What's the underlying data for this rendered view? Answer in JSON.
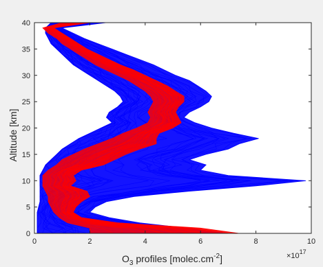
{
  "chart_data": {
    "type": "line",
    "xlabel_main": "O",
    "xlabel_sub": "3",
    "xlabel_rest": " profiles [molec.cm",
    "xlabel_sup": "-2",
    "xlabel_end": "]",
    "ylabel": "Altitude [km]",
    "x_exponent_base": "×10",
    "x_exponent_power": "17",
    "xlim": [
      0,
      10
    ],
    "ylim": [
      0,
      40
    ],
    "xticks": [
      0,
      2,
      4,
      6,
      8,
      10
    ],
    "yticks": [
      0,
      5,
      10,
      15,
      20,
      25,
      30,
      35,
      40
    ],
    "grid": false,
    "colors": {
      "ensemble_a": "#0000ff",
      "ensemble_b": "#ff0000",
      "background": "#f0f0f0",
      "axes": "#ffffff"
    },
    "altitude": [
      0,
      1,
      2,
      3,
      4,
      5,
      6,
      7,
      8,
      9,
      10,
      11,
      12,
      13,
      14,
      15,
      16,
      17,
      18,
      19,
      20,
      21,
      22,
      23,
      24,
      25,
      26,
      27,
      28,
      29,
      30,
      31,
      32,
      33,
      34,
      35,
      36,
      37,
      38,
      39,
      40
    ],
    "series": [
      {
        "color": "blue",
        "role": "envelope",
        "min": [
          0.1,
          0.1,
          0.1,
          0.1,
          0.1,
          0.15,
          0.2,
          0.2,
          0.2,
          0.2,
          0.2,
          0.2,
          0.3,
          0.4,
          0.6,
          0.8,
          1.0,
          1.3,
          1.6,
          2.0,
          2.4,
          2.8,
          2.6,
          2.7,
          3.0,
          3.2,
          3.1,
          2.9,
          2.6,
          2.3,
          2.0,
          1.7,
          1.4,
          1.2,
          1.0,
          0.8,
          0.6,
          0.5,
          0.4,
          0.4,
          0.6
        ],
        "max": [
          7.0,
          5.5,
          3.8,
          2.7,
          2.0,
          2.2,
          2.6,
          3.6,
          5.6,
          8.0,
          9.8,
          7.0,
          6.0,
          6.2,
          5.6,
          6.2,
          7.0,
          7.4,
          8.1,
          7.2,
          6.4,
          5.8,
          5.4,
          5.6,
          6.0,
          6.3,
          6.4,
          6.2,
          5.9,
          5.6,
          5.1,
          4.7,
          4.3,
          3.8,
          3.3,
          2.8,
          2.3,
          1.8,
          1.4,
          1.0,
          2.6
        ]
      },
      {
        "color": "red",
        "role": "envelope",
        "min": [
          2.0,
          2.0,
          1.2,
          0.9,
          0.7,
          0.6,
          0.5,
          0.5,
          0.4,
          0.3,
          0.3,
          0.3,
          0.5,
          0.8,
          1.0,
          1.4,
          1.8,
          2.3,
          2.8,
          3.2,
          3.7,
          4.1,
          4.2,
          4.1,
          4.2,
          4.3,
          4.2,
          4.0,
          3.7,
          3.4,
          3.0,
          2.6,
          2.2,
          1.9,
          1.6,
          1.3,
          1.0,
          0.8,
          0.5,
          0.3,
          1.0
        ],
        "max": [
          7.4,
          6.0,
          3.0,
          1.7,
          1.4,
          1.5,
          1.7,
          2.0,
          1.9,
          1.3,
          1.5,
          1.4,
          1.7,
          2.5,
          2.9,
          3.3,
          3.8,
          4.4,
          4.4,
          4.5,
          5.0,
          5.3,
          5.2,
          5.1,
          5.2,
          5.4,
          5.4,
          5.1,
          4.8,
          4.4,
          4.0,
          3.6,
          3.1,
          2.7,
          2.3,
          1.9,
          1.6,
          1.3,
          1.0,
          0.7,
          2.0
        ]
      }
    ]
  }
}
